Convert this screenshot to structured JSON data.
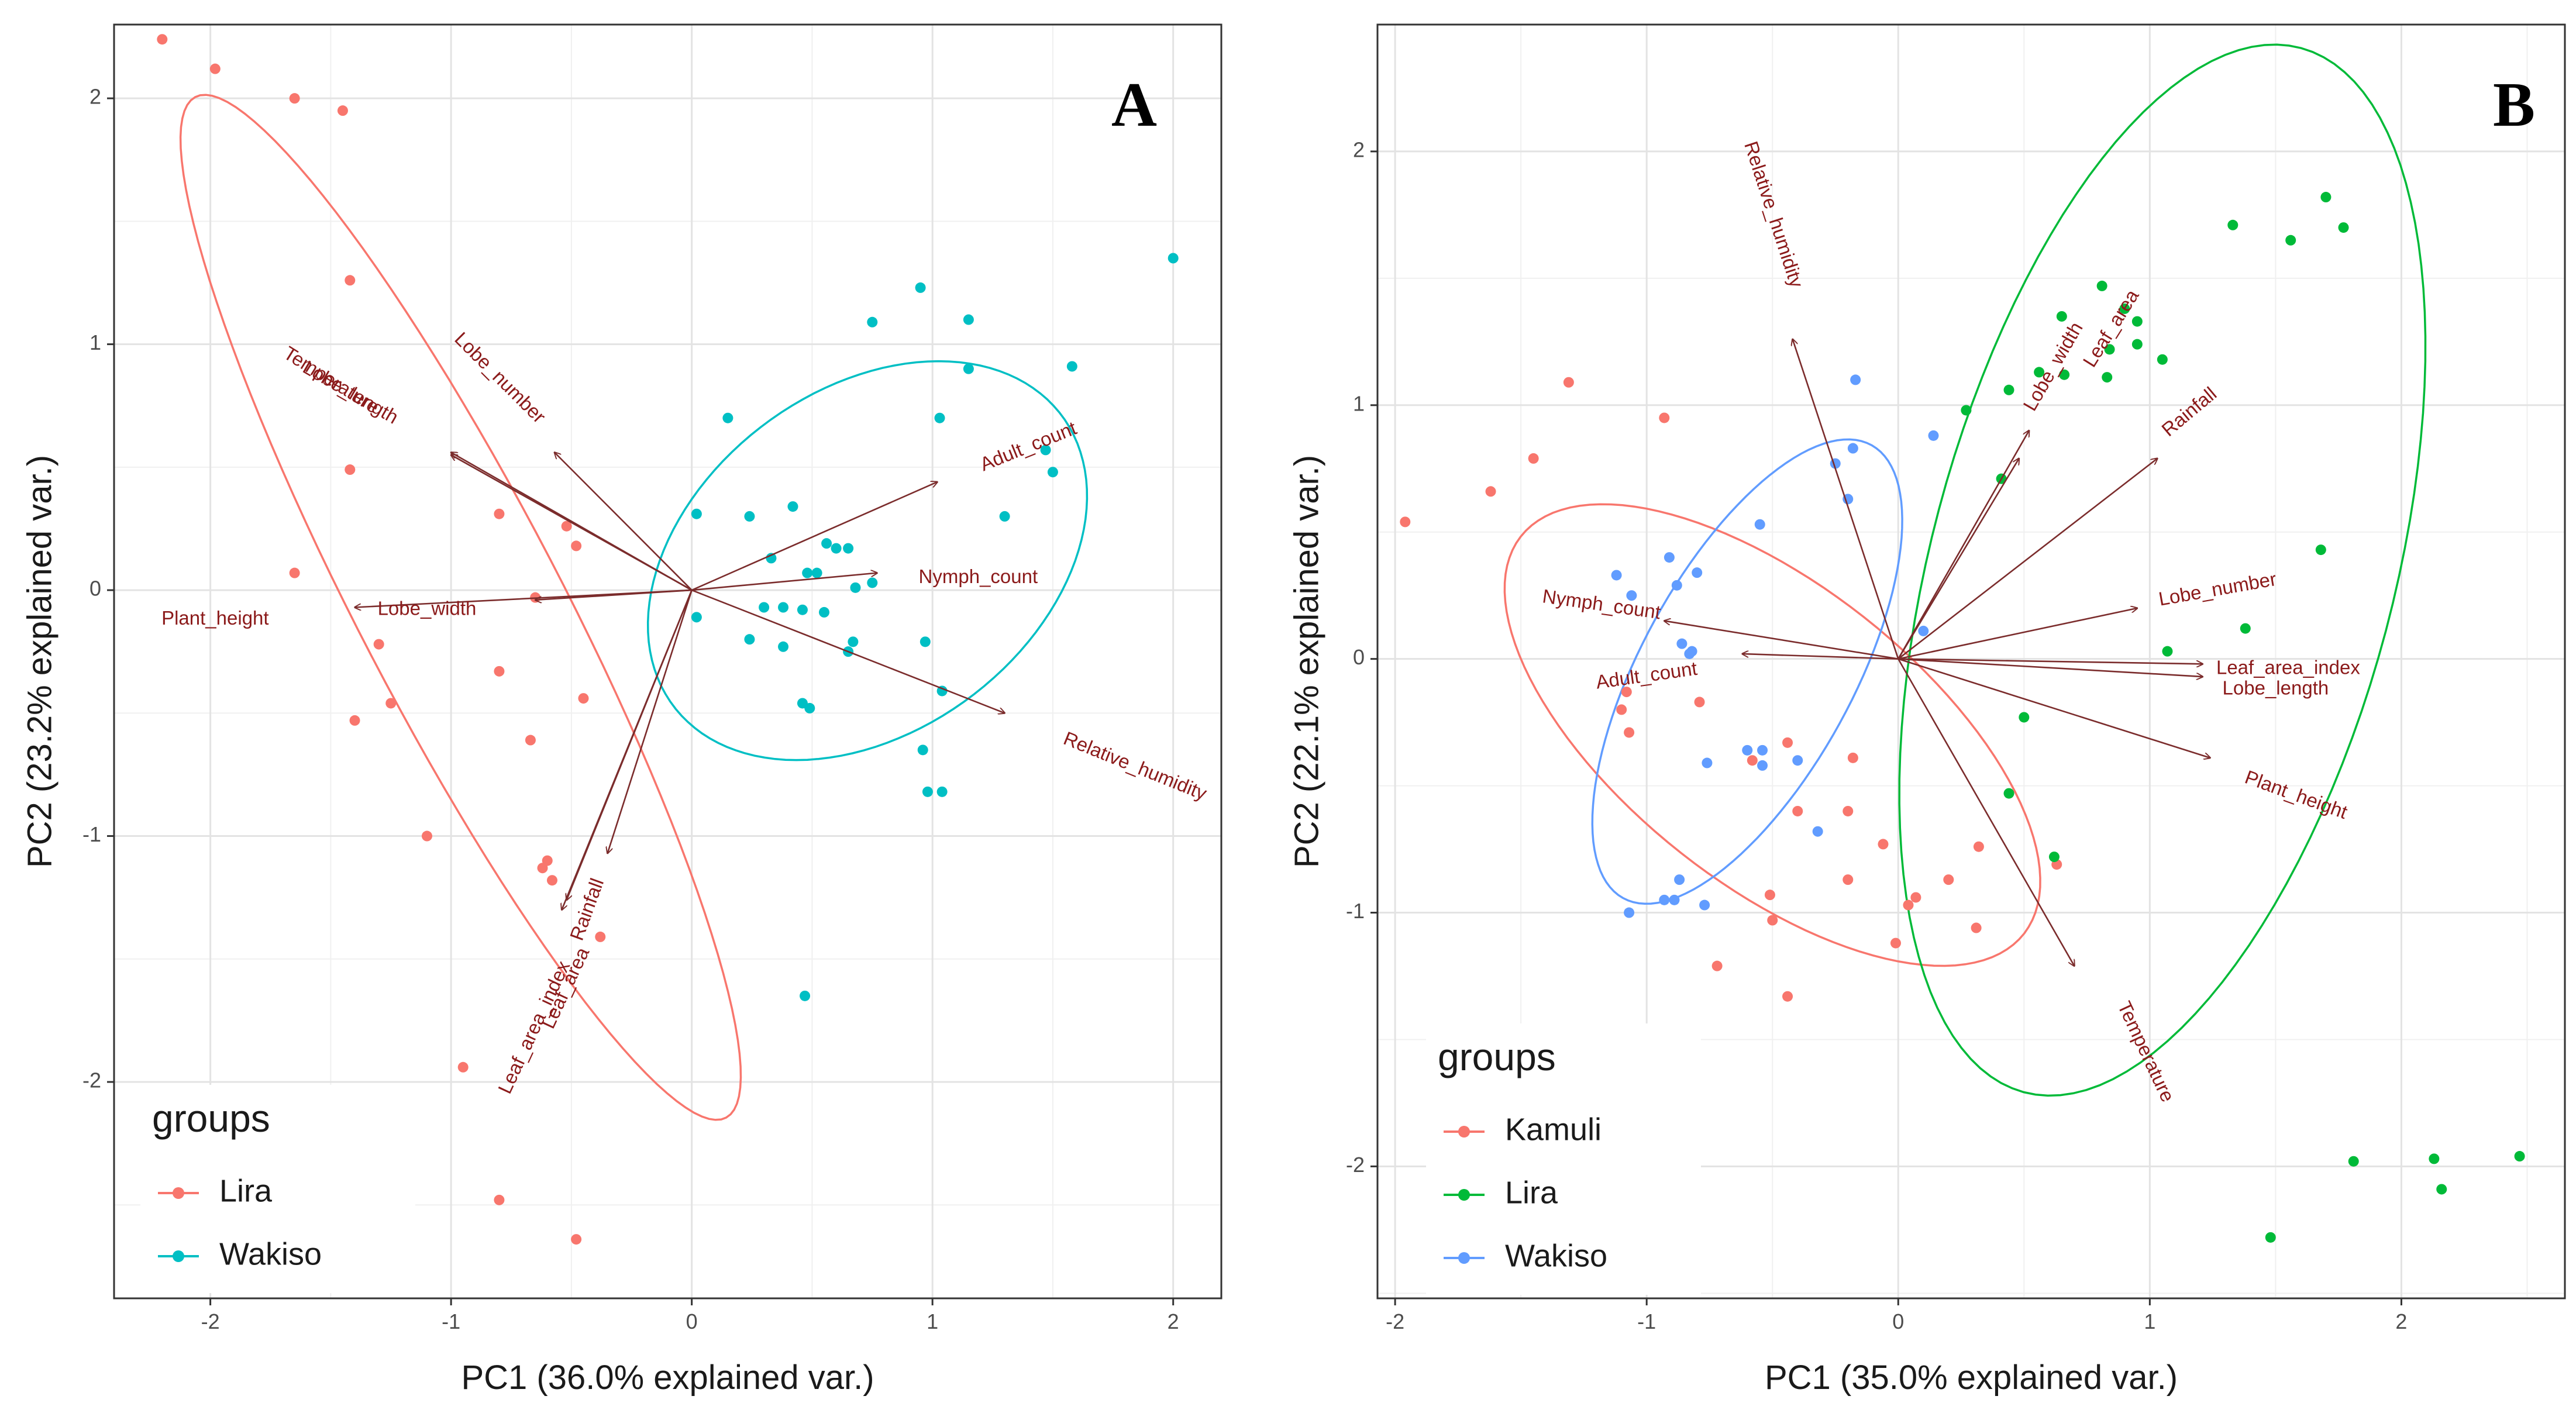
{
  "chart_data": [
    {
      "type": "scatter",
      "panel_label": "A",
      "title": "",
      "xlabel": "PC1 (36.0% explained var.)",
      "ylabel": "PC2 (23.2% explained var.)",
      "xlim": [
        -2.4,
        2.2
      ],
      "ylim": [
        -2.88,
        2.3
      ],
      "xticks": [
        -2,
        -1,
        0,
        1,
        2
      ],
      "yticks": [
        -2,
        -1,
        0,
        1,
        2
      ],
      "grid": true,
      "legend": {
        "title": "groups",
        "position": "bottom-left",
        "entries": [
          "Lira",
          "Wakiso"
        ]
      },
      "colors": {
        "Lira": "#F8766D",
        "Wakiso": "#00BFC4",
        "arrow": "#7B2C2C"
      },
      "series": [
        {
          "name": "Lira",
          "points": [
            [
              -2.2,
              2.24
            ],
            [
              -1.98,
              2.12
            ],
            [
              -1.65,
              2.0
            ],
            [
              -1.45,
              1.95
            ],
            [
              -1.42,
              1.26
            ],
            [
              -1.42,
              0.49
            ],
            [
              -1.65,
              0.07
            ],
            [
              -0.8,
              0.31
            ],
            [
              -0.52,
              0.26
            ],
            [
              -0.48,
              0.18
            ],
            [
              -0.65,
              -0.03
            ],
            [
              -1.3,
              -0.22
            ],
            [
              -0.8,
              -0.33
            ],
            [
              -1.4,
              -0.53
            ],
            [
              -1.25,
              -0.46
            ],
            [
              -0.45,
              -0.44
            ],
            [
              -0.67,
              -0.61
            ],
            [
              -1.1,
              -1.0
            ],
            [
              -0.6,
              -1.1
            ],
            [
              -0.62,
              -1.13
            ],
            [
              -0.58,
              -1.18
            ],
            [
              -0.38,
              -1.41
            ],
            [
              -0.95,
              -1.94
            ],
            [
              -0.8,
              -2.48
            ],
            [
              -0.48,
              -2.64
            ]
          ]
        },
        {
          "name": "Wakiso",
          "points": [
            [
              2.0,
              1.35
            ],
            [
              0.95,
              1.23
            ],
            [
              0.75,
              1.09
            ],
            [
              1.15,
              1.1
            ],
            [
              1.58,
              0.91
            ],
            [
              1.15,
              0.9
            ],
            [
              0.15,
              0.7
            ],
            [
              1.03,
              0.7
            ],
            [
              1.47,
              0.57
            ],
            [
              1.5,
              0.48
            ],
            [
              0.42,
              0.34
            ],
            [
              0.02,
              0.31
            ],
            [
              0.24,
              0.3
            ],
            [
              1.3,
              0.3
            ],
            [
              0.56,
              0.19
            ],
            [
              0.6,
              0.17
            ],
            [
              0.65,
              0.17
            ],
            [
              0.33,
              0.13
            ],
            [
              0.48,
              0.07
            ],
            [
              0.52,
              0.07
            ],
            [
              0.75,
              0.03
            ],
            [
              0.68,
              0.01
            ],
            [
              0.3,
              -0.07
            ],
            [
              0.38,
              -0.07
            ],
            [
              0.46,
              -0.08
            ],
            [
              0.55,
              -0.09
            ],
            [
              0.02,
              -0.11
            ],
            [
              0.24,
              -0.2
            ],
            [
              0.38,
              -0.23
            ],
            [
              0.67,
              -0.21
            ],
            [
              0.65,
              -0.25
            ],
            [
              0.97,
              -0.21
            ],
            [
              0.46,
              -0.46
            ],
            [
              0.49,
              -0.48
            ],
            [
              1.04,
              -0.41
            ],
            [
              0.96,
              -0.65
            ],
            [
              0.98,
              -0.82
            ],
            [
              1.04,
              -0.82
            ],
            [
              0.47,
              -1.65
            ]
          ]
        }
      ],
      "ellipses": [
        {
          "group": "Lira",
          "cx": -0.96,
          "cy": -0.07,
          "rx": 2.35,
          "ry": 0.42,
          "angle_deg": -62
        },
        {
          "group": "Wakiso",
          "cx": 0.73,
          "cy": 0.12,
          "rx": 1.0,
          "ry": 0.7,
          "angle_deg": 35
        }
      ],
      "loadings": [
        {
          "name": "Temperature",
          "x": -1.0,
          "y": 0.56,
          "label_x": -1.5,
          "label_y": 0.85,
          "label_rot": 32
        },
        {
          "name": "Lobe_length",
          "x": -1.0,
          "y": 0.55,
          "label_x": -1.42,
          "label_y": 0.8,
          "label_rot": 30
        },
        {
          "name": "Lobe_number",
          "x": -0.57,
          "y": 0.56,
          "label_x": -0.8,
          "label_y": 0.86,
          "label_rot": 45
        },
        {
          "name": "Plant_height",
          "x": -1.4,
          "y": -0.07,
          "label_x": -1.98,
          "label_y": -0.12,
          "label_rot": 0
        },
        {
          "name": "Lobe_width",
          "x": -0.65,
          "y": -0.04,
          "label_x": -1.1,
          "label_y": -0.08,
          "label_rot": 0
        },
        {
          "name": "Leaf_area_index",
          "x": -0.54,
          "y": -1.3,
          "label_x": -0.65,
          "label_y": -1.78,
          "label_rot": -65
        },
        {
          "name": "Leaf_area",
          "x": -0.52,
          "y": -1.26,
          "label_x": -0.52,
          "label_y": -1.62,
          "label_rot": -65
        },
        {
          "name": "Rainfall",
          "x": -0.35,
          "y": -1.07,
          "label_x": -0.43,
          "label_y": -1.3,
          "label_rot": -70
        },
        {
          "name": "Adult_count",
          "x": 1.02,
          "y": 0.44,
          "label_x": 1.4,
          "label_y": 0.58,
          "label_rot": -22
        },
        {
          "name": "Nymph_count",
          "x": 0.77,
          "y": 0.07,
          "label_x": 1.19,
          "label_y": 0.05,
          "label_rot": 0
        },
        {
          "name": "Relative_humidity",
          "x": 1.3,
          "y": -0.5,
          "label_x": 1.84,
          "label_y": -0.72,
          "label_rot": 22
        }
      ]
    },
    {
      "type": "scatter",
      "panel_label": "B",
      "title": "",
      "xlabel": "PC1 (35.0% explained var.)",
      "ylabel": "PC2 (22.1% explained var.)",
      "xlim": [
        -2.07,
        2.65
      ],
      "ylim": [
        -2.52,
        2.5
      ],
      "xticks": [
        -2,
        -1,
        0,
        1,
        2
      ],
      "yticks": [
        -2,
        -1,
        0,
        1,
        2
      ],
      "grid": true,
      "legend": {
        "title": "groups",
        "position": "bottom-left",
        "entries": [
          "Kamuli",
          "Lira",
          "Wakiso"
        ]
      },
      "colors": {
        "Kamuli": "#F8766D",
        "Lira": "#00BA38",
        "Wakiso": "#619CFF",
        "arrow": "#7B2C2C"
      },
      "series": [
        {
          "name": "Kamuli",
          "points": [
            [
              -1.96,
              0.54
            ],
            [
              -1.31,
              1.09
            ],
            [
              -0.93,
              0.95
            ],
            [
              -1.45,
              0.79
            ],
            [
              -1.62,
              0.66
            ],
            [
              -1.08,
              -0.13
            ],
            [
              -1.1,
              -0.2
            ],
            [
              -0.79,
              -0.17
            ],
            [
              -0.58,
              -0.4
            ],
            [
              -1.07,
              -0.29
            ],
            [
              -0.4,
              -0.6
            ],
            [
              -0.18,
              -0.39
            ],
            [
              -0.06,
              -0.73
            ],
            [
              -0.2,
              -0.6
            ],
            [
              -0.51,
              -0.93
            ],
            [
              -0.5,
              -1.03
            ],
            [
              -0.2,
              -0.87
            ],
            [
              -0.44,
              -0.33
            ],
            [
              0.04,
              -0.97
            ],
            [
              0.07,
              -0.94
            ],
            [
              0.31,
              -1.06
            ],
            [
              0.32,
              -0.74
            ],
            [
              -0.01,
              -1.12
            ],
            [
              0.63,
              -0.81
            ],
            [
              -0.72,
              -1.21
            ],
            [
              -0.44,
              -1.33
            ],
            [
              0.2,
              -0.87
            ]
          ]
        },
        {
          "name": "Lira",
          "points": [
            [
              1.33,
              1.71
            ],
            [
              1.7,
              1.82
            ],
            [
              1.77,
              1.7
            ],
            [
              1.56,
              1.65
            ],
            [
              0.65,
              1.35
            ],
            [
              0.9,
              1.38
            ],
            [
              0.95,
              1.33
            ],
            [
              0.81,
              1.47
            ],
            [
              0.95,
              1.24
            ],
            [
              0.84,
              1.22
            ],
            [
              1.05,
              1.18
            ],
            [
              0.66,
              1.12
            ],
            [
              0.56,
              1.13
            ],
            [
              0.83,
              1.11
            ],
            [
              0.44,
              1.06
            ],
            [
              0.27,
              0.98
            ],
            [
              0.41,
              0.71
            ],
            [
              1.68,
              0.43
            ],
            [
              1.38,
              0.12
            ],
            [
              1.07,
              0.03
            ],
            [
              0.5,
              -0.23
            ],
            [
              0.44,
              -0.53
            ],
            [
              0.62,
              -0.78
            ],
            [
              1.81,
              -1.98
            ],
            [
              2.13,
              -1.97
            ],
            [
              2.16,
              -2.09
            ],
            [
              2.47,
              -1.96
            ],
            [
              1.48,
              -2.28
            ]
          ]
        },
        {
          "name": "Wakiso",
          "points": [
            [
              -0.17,
              1.1
            ],
            [
              -0.25,
              0.77
            ],
            [
              -0.18,
              0.83
            ],
            [
              0.14,
              0.88
            ],
            [
              -0.2,
              0.63
            ],
            [
              -0.55,
              0.53
            ],
            [
              -0.91,
              0.4
            ],
            [
              -0.8,
              0.34
            ],
            [
              -0.88,
              0.29
            ],
            [
              -1.12,
              0.33
            ],
            [
              -1.06,
              0.25
            ],
            [
              -0.86,
              0.06
            ],
            [
              -0.82,
              0.03
            ],
            [
              -0.83,
              0.02
            ],
            [
              0.1,
              0.11
            ],
            [
              -0.6,
              -0.36
            ],
            [
              -0.54,
              -0.36
            ],
            [
              -0.54,
              -0.42
            ],
            [
              -0.4,
              -0.4
            ],
            [
              -0.76,
              -0.41
            ],
            [
              -0.32,
              -0.68
            ],
            [
              -0.87,
              -0.87
            ],
            [
              -0.89,
              -0.95
            ],
            [
              -0.77,
              -0.97
            ],
            [
              -0.93,
              -0.95
            ],
            [
              -1.07,
              -1.0
            ]
          ]
        }
      ],
      "ellipses": [
        {
          "group": "Kamuli",
          "cx": -0.5,
          "cy": -0.3,
          "rx": 1.27,
          "ry": 0.59,
          "angle_deg": -38
        },
        {
          "group": "Lira",
          "cx": 1.05,
          "cy": 0.35,
          "rx": 2.13,
          "ry": 0.92,
          "angle_deg": 75
        },
        {
          "group": "Wakiso",
          "cx": -0.6,
          "cy": -0.05,
          "rx": 1.02,
          "ry": 0.42,
          "angle_deg": 61
        }
      ],
      "loadings": [
        {
          "name": "Relative_humidity",
          "x": -0.42,
          "y": 1.26,
          "label_x": -0.5,
          "label_y": 1.75,
          "label_rot": 72
        },
        {
          "name": "Lobe_width",
          "x": 0.48,
          "y": 0.79,
          "label_x": 0.62,
          "label_y": 1.15,
          "label_rot": -60
        },
        {
          "name": "Leaf_area",
          "x": 0.52,
          "y": 0.9,
          "label_x": 0.85,
          "label_y": 1.3,
          "label_rot": -58
        },
        {
          "name": "Rainfall",
          "x": 1.03,
          "y": 0.79,
          "label_x": 1.16,
          "label_y": 0.97,
          "label_rot": -40
        },
        {
          "name": "Lobe_number",
          "x": 0.95,
          "y": 0.2,
          "label_x": 1.27,
          "label_y": 0.27,
          "label_rot": -10
        },
        {
          "name": "Leaf_area_index",
          "x": 1.21,
          "y": -0.02,
          "label_x": 1.55,
          "label_y": -0.04,
          "label_rot": 0
        },
        {
          "name": "Lobe_length",
          "x": 1.21,
          "y": -0.07,
          "label_x": 1.5,
          "label_y": -0.12,
          "label_rot": 0
        },
        {
          "name": "Plant_height",
          "x": 1.24,
          "y": -0.39,
          "label_x": 1.58,
          "label_y": -0.54,
          "label_rot": 20
        },
        {
          "name": "Temperature",
          "x": 0.7,
          "y": -1.21,
          "label_x": 0.98,
          "label_y": -1.55,
          "label_rot": 65
        },
        {
          "name": "Nymph_count",
          "x": -0.93,
          "y": 0.15,
          "label_x": -1.18,
          "label_y": 0.21,
          "label_rot": 8
        },
        {
          "name": "Adult_count",
          "x": -0.62,
          "y": 0.02,
          "label_x": -1.0,
          "label_y": -0.07,
          "label_rot": -8
        }
      ]
    }
  ]
}
